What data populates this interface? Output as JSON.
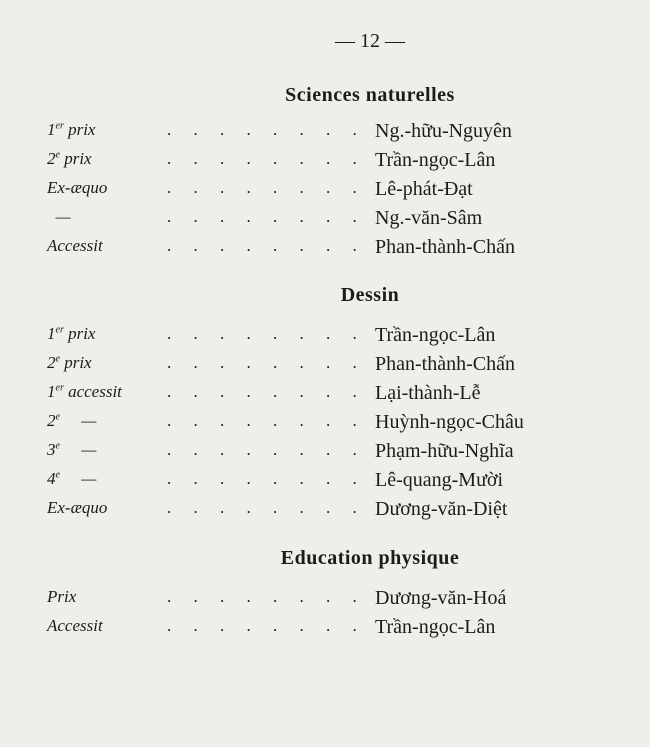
{
  "page_number": "— 12 —",
  "sections": [
    {
      "title": "Sciences naturelles",
      "rows": [
        {
          "rank": "1",
          "sup": "er",
          "label": "prix",
          "name": "Ng.-hữu-Nguyên"
        },
        {
          "rank": "2",
          "sup": "e",
          "label": "prix",
          "name": "Trần-ngọc-Lân"
        },
        {
          "rank": "Ex-æquo",
          "sup": "",
          "label": "",
          "name": "Lê-phát-Đạt"
        },
        {
          "rank": "  —",
          "sup": "",
          "label": "",
          "name": "Ng.-văn-Sâm"
        },
        {
          "rank": "Accessit",
          "sup": "",
          "label": "",
          "name": "Phan-thành-Chấn"
        }
      ]
    },
    {
      "title": "Dessin",
      "rows": [
        {
          "rank": "1",
          "sup": "er",
          "label": "prix",
          "name": "Trần-ngọc-Lân"
        },
        {
          "rank": "2",
          "sup": "e",
          "label": "prix",
          "name": "Phan-thành-Chấn"
        },
        {
          "rank": "1",
          "sup": "er",
          "label": "accessit",
          "name": "Lại-thành-Lễ"
        },
        {
          "rank": "2",
          "sup": "e",
          "label": "    —",
          "name": "Huỳnh-ngọc-Châu"
        },
        {
          "rank": "3",
          "sup": "e",
          "label": "    —",
          "name": "Phạm-hữu-Nghĩa"
        },
        {
          "rank": "4",
          "sup": "e",
          "label": "    —",
          "name": "Lê-quang-Mười"
        },
        {
          "rank": "Ex-æquo",
          "sup": "",
          "label": "",
          "name": "Dương-văn-Diệt"
        }
      ]
    },
    {
      "title": "Education physique",
      "rows": [
        {
          "rank": "Prix",
          "sup": "",
          "label": "",
          "name": "Dương-văn-Hoá"
        },
        {
          "rank": "Accessit",
          "sup": "",
          "label": "",
          "name": "Trần-ngọc-Lân"
        }
      ]
    }
  ]
}
